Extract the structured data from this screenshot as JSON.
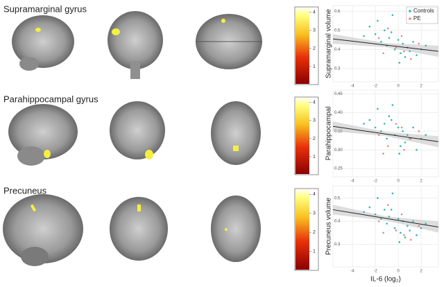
{
  "panels": [
    {
      "region": "Supramarginal gyrus",
      "colorbar": {
        "lim": [
          0,
          4.3
        ],
        "ticks": [
          1,
          2,
          3,
          4
        ]
      }
    },
    {
      "region": "Parahippocampal gyrus",
      "colorbar": {
        "lim": [
          0,
          4.3
        ],
        "ticks": [
          1,
          2,
          3,
          4
        ]
      }
    },
    {
      "region": "Precuneus",
      "colorbar": {
        "lim": [
          0,
          4.3
        ],
        "ticks": [
          1,
          2,
          3,
          4
        ]
      }
    }
  ],
  "chart_data": [
    {
      "type": "scatter",
      "ylabel": "Supramarginal volume",
      "xlim": [
        -5.7,
        3.5
      ],
      "ylim": [
        0.23,
        0.63
      ],
      "xticks": [
        -4,
        -2,
        0,
        2
      ],
      "yticks": [
        0.3,
        0.4,
        0.5,
        0.6
      ],
      "grid": true,
      "legend": "top-right",
      "series": [
        {
          "name": "Controls",
          "color": "#2ab7b0",
          "x": [
            -2.5,
            -2,
            -1.8,
            -1.5,
            -1.2,
            -1,
            -0.8,
            -0.5,
            -0.3,
            0,
            0.2,
            0.4,
            0.6,
            0.8,
            1,
            1.3,
            1.6,
            2,
            2.4,
            -3,
            0.1,
            -0.6
          ],
          "values": [
            0.52,
            0.48,
            0.55,
            0.44,
            0.5,
            0.42,
            0.46,
            0.58,
            0.4,
            0.45,
            0.38,
            0.43,
            0.36,
            0.41,
            0.39,
            0.44,
            0.37,
            0.4,
            0.42,
            0.47,
            0.33,
            0.49
          ]
        },
        {
          "name": "PE",
          "color": "#f08080",
          "x": [
            -1.7,
            -0.9,
            -0.2,
            0.5,
            1.1,
            1.8,
            -1.3,
            0.3
          ],
          "values": [
            0.46,
            0.51,
            0.41,
            0.39,
            0.35,
            0.43,
            0.38,
            0.47
          ]
        }
      ],
      "trend": {
        "x": [
          -5.7,
          3.5
        ],
        "values": [
          0.455,
          0.39
        ]
      }
    },
    {
      "type": "scatter",
      "ylabel": "Parahippocampal",
      "xlim": [
        -5.7,
        3.5
      ],
      "ylim": [
        0.228,
        0.46
      ],
      "xticks": [
        -4,
        -2,
        0,
        2
      ],
      "yticks": [
        0.25,
        {
          "value": 0.3,
          "label": "0.30"
        },
        0.35,
        {
          "value": 0.4,
          "label": "0.40"
        },
        0.45
      ],
      "grid": true,
      "series": [
        {
          "color": "#2ab7b0",
          "x": [
            -2.5,
            -2,
            -1.8,
            -1.5,
            -1.2,
            -1,
            -0.8,
            -0.5,
            -0.3,
            0,
            0.2,
            0.4,
            0.6,
            0.8,
            1,
            1.3,
            1.6,
            2,
            2.4,
            -3,
            0.1,
            -0.6
          ],
          "values": [
            0.38,
            0.36,
            0.41,
            0.35,
            0.37,
            0.33,
            0.39,
            0.42,
            0.34,
            0.36,
            0.31,
            0.35,
            0.32,
            0.34,
            0.33,
            0.36,
            0.3,
            0.33,
            0.34,
            0.37,
            0.29,
            0.38
          ]
        },
        {
          "color": "#f08080",
          "x": [
            -1.7,
            -0.9,
            -0.2,
            0.5,
            1.1,
            1.8,
            -1.3,
            0.3
          ],
          "values": [
            0.34,
            0.31,
            0.37,
            0.3,
            0.33,
            0.35,
            0.29,
            0.36
          ]
        }
      ],
      "trend": {
        "x": [
          -5.7,
          3.5
        ],
        "values": [
          0.363,
          0.322
        ]
      }
    },
    {
      "type": "scatter",
      "ylabel": "Precuneus volume",
      "xlabel": "IL-6 (log₂)",
      "xlim": [
        -5.7,
        3.5
      ],
      "ylim": [
        0.203,
        0.553
      ],
      "xticks": [
        -4,
        -2,
        0,
        2
      ],
      "yticks": [
        0.3,
        0.4,
        0.5
      ],
      "grid": true,
      "series": [
        {
          "color": "#2ab7b0",
          "x": [
            -2.5,
            -2,
            -1.8,
            -1.5,
            -1.2,
            -1,
            -0.8,
            -0.5,
            -0.3,
            0,
            0.2,
            0.4,
            0.6,
            0.8,
            1,
            1.3,
            1.6,
            2,
            2.4,
            -3,
            0.1,
            -0.6
          ],
          "values": [
            0.46,
            0.43,
            0.5,
            0.41,
            0.45,
            0.39,
            0.42,
            0.52,
            0.37,
            0.41,
            0.35,
            0.4,
            0.33,
            0.38,
            0.36,
            0.4,
            0.34,
            0.37,
            0.39,
            0.44,
            0.31,
            0.45
          ]
        },
        {
          "color": "#f08080",
          "x": [
            -1.7,
            -0.9,
            -0.2,
            0.5,
            1.1,
            1.8,
            -1.3,
            0.3
          ],
          "values": [
            0.4,
            0.47,
            0.36,
            0.34,
            0.32,
            0.38,
            0.35,
            0.43
          ]
        }
      ],
      "trend": {
        "x": [
          -5.7,
          3.5
        ],
        "values": [
          0.45,
          0.375
        ]
      }
    }
  ]
}
